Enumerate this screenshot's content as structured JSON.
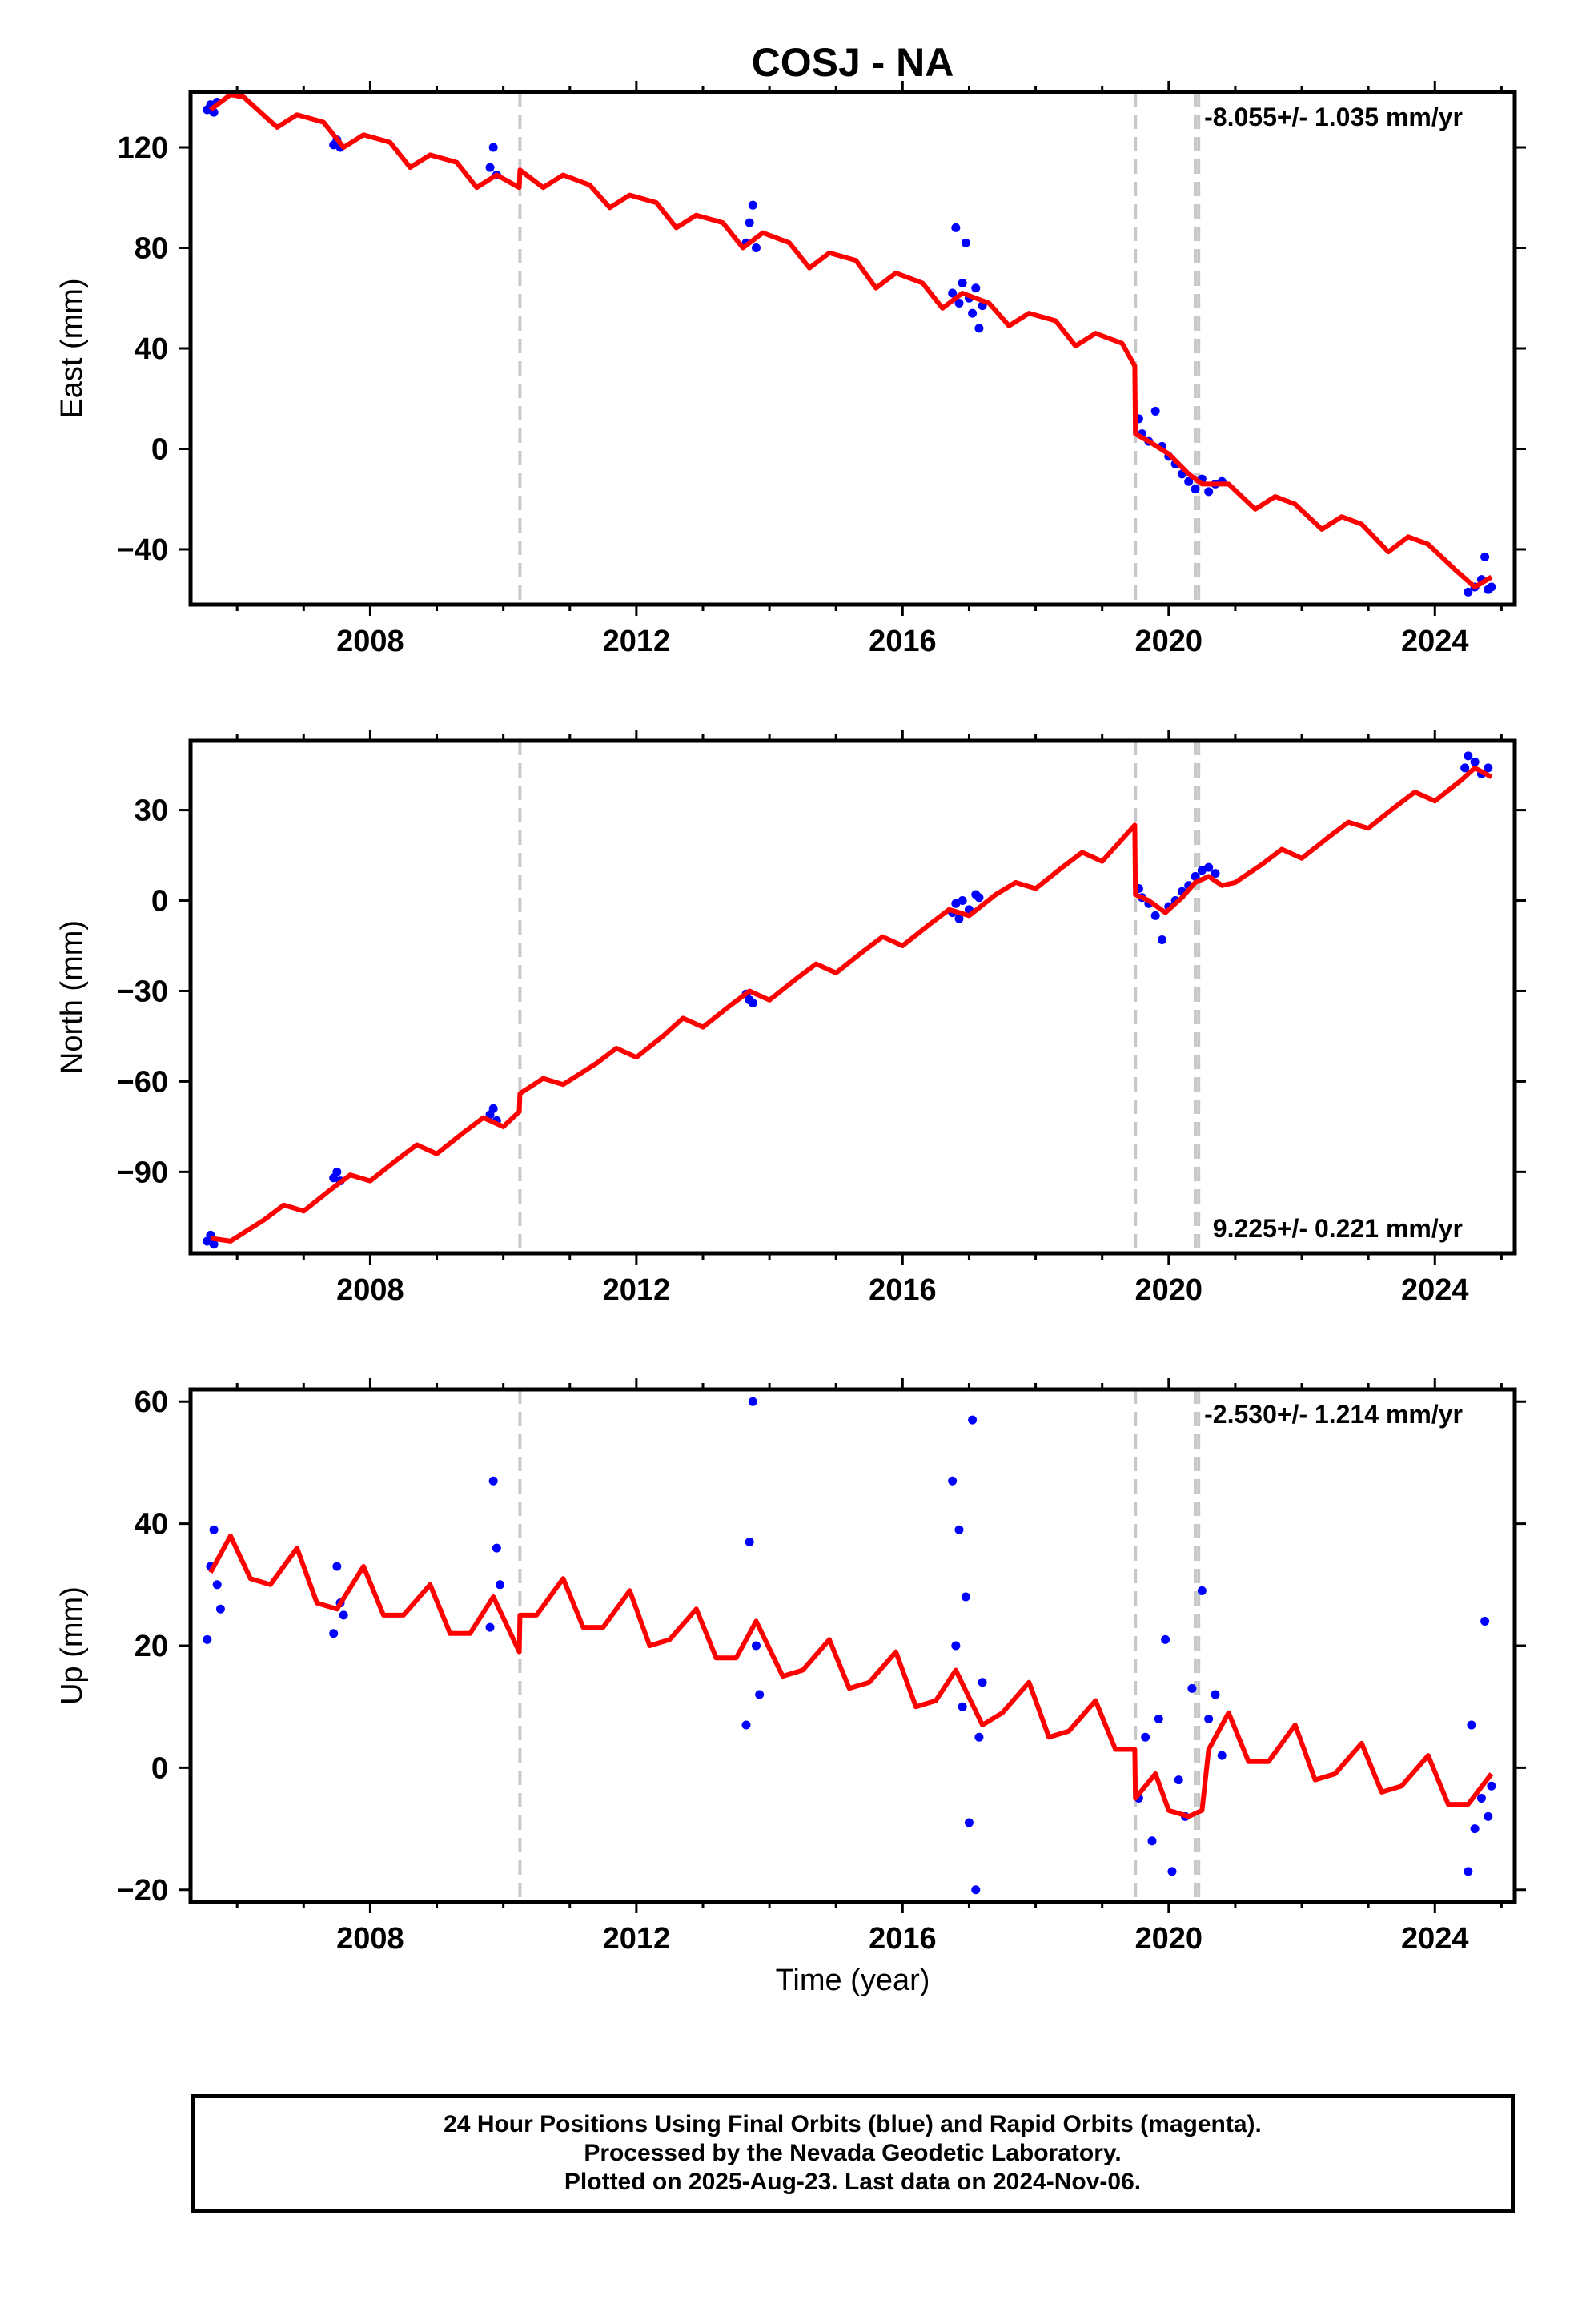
{
  "title": "COSJ - NA",
  "xlabel": "Time (year)",
  "footer": [
    "24 Hour Positions Using Final Orbits (blue) and Rapid Orbits (magenta).",
    "Processed by the Nevada Geodetic Laboratory.",
    "Plotted on 2025-Aug-23. Last data on 2024-Nov-06."
  ],
  "colors": {
    "data": "#0000ff",
    "model": "#ff0000",
    "steps": "#c8c8c8",
    "frame": "#000000"
  },
  "chart_data": [
    {
      "type": "scatter",
      "panel": "East",
      "ylabel": "East (mm)",
      "rate_label": "-8.055+/- 1.035 mm/yr",
      "rate_position": "top-right",
      "xlim": [
        2005.3,
        2025.2
      ],
      "ylim": [
        -62,
        142
      ],
      "xticks": [
        2008,
        2012,
        2016,
        2020,
        2024
      ],
      "yticks": [
        120,
        80,
        40,
        0,
        -40
      ],
      "ytick_labels": [
        "120",
        "80",
        "40",
        "0",
        "−40"
      ],
      "steps": [
        2010.25,
        2019.5,
        2020.4,
        2020.45
      ],
      "model": [
        [
          2005.6,
          135
        ],
        [
          2005.9,
          141
        ],
        [
          2006.1,
          140
        ],
        [
          2006.6,
          128
        ],
        [
          2006.9,
          133
        ],
        [
          2007.3,
          130
        ],
        [
          2007.6,
          120
        ],
        [
          2007.9,
          125
        ],
        [
          2008.3,
          122
        ],
        [
          2008.6,
          112
        ],
        [
          2008.9,
          117
        ],
        [
          2009.3,
          114
        ],
        [
          2009.6,
          104
        ],
        [
          2009.9,
          109
        ],
        [
          2010.24,
          104
        ],
        [
          2010.25,
          111
        ],
        [
          2010.6,
          104
        ],
        [
          2010.9,
          109
        ],
        [
          2011.3,
          105
        ],
        [
          2011.6,
          96
        ],
        [
          2011.9,
          101
        ],
        [
          2012.3,
          98
        ],
        [
          2012.6,
          88
        ],
        [
          2012.9,
          93
        ],
        [
          2013.3,
          90
        ],
        [
          2013.6,
          80
        ],
        [
          2013.9,
          86
        ],
        [
          2014.3,
          82
        ],
        [
          2014.6,
          72
        ],
        [
          2014.9,
          78
        ],
        [
          2015.3,
          75
        ],
        [
          2015.6,
          64
        ],
        [
          2015.9,
          70
        ],
        [
          2016.3,
          66
        ],
        [
          2016.6,
          56
        ],
        [
          2016.9,
          62
        ],
        [
          2017.3,
          58
        ],
        [
          2017.6,
          49
        ],
        [
          2017.9,
          54
        ],
        [
          2018.3,
          51
        ],
        [
          2018.6,
          41
        ],
        [
          2018.9,
          46
        ],
        [
          2019.3,
          42
        ],
        [
          2019.49,
          33
        ],
        [
          2019.5,
          6
        ],
        [
          2019.7,
          3
        ],
        [
          2020.0,
          -2
        ],
        [
          2020.3,
          -10
        ],
        [
          2020.5,
          -14
        ],
        [
          2020.9,
          -14
        ],
        [
          2021.3,
          -24
        ],
        [
          2021.6,
          -19
        ],
        [
          2021.9,
          -22
        ],
        [
          2022.3,
          -32
        ],
        [
          2022.6,
          -27
        ],
        [
          2022.9,
          -30
        ],
        [
          2023.3,
          -41
        ],
        [
          2023.6,
          -35
        ],
        [
          2023.9,
          -38
        ],
        [
          2024.3,
          -48
        ],
        [
          2024.6,
          -55
        ],
        [
          2024.85,
          -51
        ]
      ],
      "points": [
        [
          2005.55,
          135
        ],
        [
          2005.6,
          137
        ],
        [
          2005.65,
          134
        ],
        [
          2005.7,
          138
        ],
        [
          2007.45,
          121
        ],
        [
          2007.5,
          123
        ],
        [
          2007.55,
          120
        ],
        [
          2009.8,
          112
        ],
        [
          2009.85,
          120
        ],
        [
          2009.9,
          109
        ],
        [
          2013.65,
          82
        ],
        [
          2013.7,
          90
        ],
        [
          2013.75,
          97
        ],
        [
          2013.8,
          80
        ],
        [
          2016.75,
          62
        ],
        [
          2016.8,
          88
        ],
        [
          2016.85,
          58
        ],
        [
          2016.9,
          66
        ],
        [
          2016.95,
          82
        ],
        [
          2017.0,
          60
        ],
        [
          2017.05,
          54
        ],
        [
          2017.1,
          64
        ],
        [
          2017.15,
          48
        ],
        [
          2017.2,
          57
        ],
        [
          2019.55,
          12
        ],
        [
          2019.6,
          6
        ],
        [
          2019.7,
          3
        ],
        [
          2019.8,
          15
        ],
        [
          2019.9,
          1
        ],
        [
          2020.0,
          -3
        ],
        [
          2020.1,
          -6
        ],
        [
          2020.2,
          -10
        ],
        [
          2020.3,
          -13
        ],
        [
          2020.4,
          -16
        ],
        [
          2020.5,
          -12
        ],
        [
          2020.6,
          -17
        ],
        [
          2020.7,
          -14
        ],
        [
          2020.8,
          -13
        ],
        [
          2024.5,
          -57
        ],
        [
          2024.6,
          -55
        ],
        [
          2024.7,
          -52
        ],
        [
          2024.75,
          -43
        ],
        [
          2024.8,
          -56
        ],
        [
          2024.85,
          -55
        ]
      ]
    },
    {
      "type": "scatter",
      "panel": "North",
      "ylabel": "North (mm)",
      "rate_label": "9.225+/- 0.221 mm/yr",
      "rate_position": "bottom-right",
      "xlim": [
        2005.3,
        2025.2
      ],
      "ylim": [
        -117,
        53
      ],
      "xticks": [
        2008,
        2012,
        2016,
        2020,
        2024
      ],
      "yticks": [
        30,
        0,
        -30,
        -60,
        -90
      ],
      "ytick_labels": [
        "30",
        "0",
        "−30",
        "−60",
        "−90"
      ],
      "steps": [
        2010.25,
        2019.5,
        2020.4,
        2020.45
      ],
      "model": [
        [
          2005.6,
          -112
        ],
        [
          2005.9,
          -113
        ],
        [
          2006.4,
          -106
        ],
        [
          2006.7,
          -101
        ],
        [
          2007.0,
          -103
        ],
        [
          2007.4,
          -96
        ],
        [
          2007.7,
          -91
        ],
        [
          2008.0,
          -93
        ],
        [
          2008.4,
          -86
        ],
        [
          2008.7,
          -81
        ],
        [
          2009.0,
          -84
        ],
        [
          2009.4,
          -77
        ],
        [
          2009.7,
          -72
        ],
        [
          2010.0,
          -75
        ],
        [
          2010.24,
          -70
        ],
        [
          2010.25,
          -64
        ],
        [
          2010.6,
          -59
        ],
        [
          2010.9,
          -61
        ],
        [
          2011.4,
          -54
        ],
        [
          2011.7,
          -49
        ],
        [
          2012.0,
          -52
        ],
        [
          2012.4,
          -45
        ],
        [
          2012.7,
          -39
        ],
        [
          2013.0,
          -42
        ],
        [
          2013.4,
          -35
        ],
        [
          2013.7,
          -30
        ],
        [
          2014.0,
          -33
        ],
        [
          2014.4,
          -26
        ],
        [
          2014.7,
          -21
        ],
        [
          2015.0,
          -24
        ],
        [
          2015.4,
          -17
        ],
        [
          2015.7,
          -12
        ],
        [
          2016.0,
          -15
        ],
        [
          2016.4,
          -8
        ],
        [
          2016.7,
          -3
        ],
        [
          2017.0,
          -5
        ],
        [
          2017.4,
          2
        ],
        [
          2017.7,
          6
        ],
        [
          2018.0,
          4
        ],
        [
          2018.4,
          11
        ],
        [
          2018.7,
          16
        ],
        [
          2019.0,
          13
        ],
        [
          2019.49,
          25
        ],
        [
          2019.5,
          2
        ],
        [
          2019.7,
          0
        ],
        [
          2019.95,
          -4
        ],
        [
          2020.2,
          1
        ],
        [
          2020.4,
          6
        ],
        [
          2020.6,
          8
        ],
        [
          2020.8,
          5
        ],
        [
          2021.0,
          6
        ],
        [
          2021.4,
          12
        ],
        [
          2021.7,
          17
        ],
        [
          2022.0,
          14
        ],
        [
          2022.4,
          21
        ],
        [
          2022.7,
          26
        ],
        [
          2023.0,
          24
        ],
        [
          2023.4,
          31
        ],
        [
          2023.7,
          36
        ],
        [
          2024.0,
          33
        ],
        [
          2024.4,
          40
        ],
        [
          2024.6,
          44
        ],
        [
          2024.85,
          41
        ]
      ],
      "points": [
        [
          2005.55,
          -113
        ],
        [
          2005.6,
          -111
        ],
        [
          2005.65,
          -114
        ],
        [
          2007.45,
          -92
        ],
        [
          2007.5,
          -90
        ],
        [
          2007.55,
          -93
        ],
        [
          2009.8,
          -71
        ],
        [
          2009.85,
          -69
        ],
        [
          2009.9,
          -73
        ],
        [
          2013.65,
          -31
        ],
        [
          2013.7,
          -33
        ],
        [
          2013.75,
          -34
        ],
        [
          2016.75,
          -4
        ],
        [
          2016.8,
          -1
        ],
        [
          2016.85,
          -6
        ],
        [
          2016.9,
          0
        ],
        [
          2017.0,
          -3
        ],
        [
          2017.1,
          2
        ],
        [
          2017.15,
          1
        ],
        [
          2019.55,
          4
        ],
        [
          2019.6,
          1
        ],
        [
          2019.7,
          -1
        ],
        [
          2019.8,
          -5
        ],
        [
          2019.9,
          -13
        ],
        [
          2020.0,
          -2
        ],
        [
          2020.1,
          0
        ],
        [
          2020.2,
          3
        ],
        [
          2020.3,
          5
        ],
        [
          2020.4,
          8
        ],
        [
          2020.5,
          10
        ],
        [
          2020.6,
          11
        ],
        [
          2020.7,
          9
        ],
        [
          2024.45,
          44
        ],
        [
          2024.5,
          48
        ],
        [
          2024.6,
          46
        ],
        [
          2024.7,
          42
        ],
        [
          2024.8,
          44
        ]
      ]
    },
    {
      "type": "scatter",
      "panel": "Up",
      "ylabel": "Up (mm)",
      "rate_label": "-2.530+/- 1.214 mm/yr",
      "rate_position": "top-right",
      "xlim": [
        2005.3,
        2025.2
      ],
      "ylim": [
        -22,
        62
      ],
      "xticks": [
        2008,
        2012,
        2016,
        2020,
        2024
      ],
      "yticks": [
        60,
        40,
        20,
        0,
        -20
      ],
      "ytick_labels": [
        "60",
        "40",
        "20",
        "0",
        "−20"
      ],
      "steps": [
        2010.25,
        2019.5,
        2020.4,
        2020.45
      ],
      "model": [
        [
          2005.6,
          32
        ],
        [
          2005.9,
          38
        ],
        [
          2006.2,
          31
        ],
        [
          2006.5,
          30
        ],
        [
          2006.9,
          36
        ],
        [
          2007.2,
          27
        ],
        [
          2007.5,
          26
        ],
        [
          2007.9,
          33
        ],
        [
          2008.2,
          25
        ],
        [
          2008.5,
          25
        ],
        [
          2008.9,
          30
        ],
        [
          2009.2,
          22
        ],
        [
          2009.5,
          22
        ],
        [
          2009.85,
          28
        ],
        [
          2010.24,
          19
        ],
        [
          2010.25,
          25
        ],
        [
          2010.5,
          25
        ],
        [
          2010.9,
          31
        ],
        [
          2011.2,
          23
        ],
        [
          2011.5,
          23
        ],
        [
          2011.9,
          29
        ],
        [
          2012.2,
          20
        ],
        [
          2012.5,
          21
        ],
        [
          2012.9,
          26
        ],
        [
          2013.2,
          18
        ],
        [
          2013.5,
          18
        ],
        [
          2013.8,
          24
        ],
        [
          2014.2,
          15
        ],
        [
          2014.5,
          16
        ],
        [
          2014.9,
          21
        ],
        [
          2015.2,
          13
        ],
        [
          2015.5,
          14
        ],
        [
          2015.9,
          19
        ],
        [
          2016.2,
          10
        ],
        [
          2016.5,
          11
        ],
        [
          2016.8,
          16
        ],
        [
          2017.2,
          7
        ],
        [
          2017.5,
          9
        ],
        [
          2017.9,
          14
        ],
        [
          2018.2,
          5
        ],
        [
          2018.5,
          6
        ],
        [
          2018.9,
          11
        ],
        [
          2019.2,
          3
        ],
        [
          2019.49,
          3
        ],
        [
          2019.5,
          -5
        ],
        [
          2019.8,
          -1
        ],
        [
          2020.0,
          -7
        ],
        [
          2020.3,
          -8
        ],
        [
          2020.5,
          -7
        ],
        [
          2020.6,
          3
        ],
        [
          2020.9,
          9
        ],
        [
          2021.2,
          1
        ],
        [
          2021.5,
          1
        ],
        [
          2021.9,
          7
        ],
        [
          2022.2,
          -2
        ],
        [
          2022.5,
          -1
        ],
        [
          2022.9,
          4
        ],
        [
          2023.2,
          -4
        ],
        [
          2023.5,
          -3
        ],
        [
          2023.9,
          2
        ],
        [
          2024.2,
          -6
        ],
        [
          2024.5,
          -6
        ],
        [
          2024.85,
          -1
        ]
      ],
      "points": [
        [
          2005.55,
          21
        ],
        [
          2005.6,
          33
        ],
        [
          2005.65,
          39
        ],
        [
          2005.7,
          30
        ],
        [
          2005.75,
          26
        ],
        [
          2007.45,
          22
        ],
        [
          2007.5,
          33
        ],
        [
          2007.55,
          27
        ],
        [
          2007.6,
          25
        ],
        [
          2009.8,
          23
        ],
        [
          2009.85,
          47
        ],
        [
          2009.9,
          36
        ],
        [
          2009.95,
          30
        ],
        [
          2013.65,
          7
        ],
        [
          2013.7,
          37
        ],
        [
          2013.75,
          60
        ],
        [
          2013.8,
          20
        ],
        [
          2013.85,
          12
        ],
        [
          2016.75,
          47
        ],
        [
          2016.8,
          20
        ],
        [
          2016.85,
          39
        ],
        [
          2016.9,
          10
        ],
        [
          2016.95,
          28
        ],
        [
          2017.0,
          -9
        ],
        [
          2017.05,
          57
        ],
        [
          2017.1,
          -20
        ],
        [
          2017.15,
          5
        ],
        [
          2017.2,
          14
        ],
        [
          2019.55,
          -5
        ],
        [
          2019.65,
          5
        ],
        [
          2019.75,
          -12
        ],
        [
          2019.85,
          8
        ],
        [
          2019.95,
          21
        ],
        [
          2020.05,
          -17
        ],
        [
          2020.15,
          -2
        ],
        [
          2020.25,
          -8
        ],
        [
          2020.35,
          13
        ],
        [
          2020.5,
          29
        ],
        [
          2020.6,
          8
        ],
        [
          2020.7,
          12
        ],
        [
          2020.8,
          2
        ],
        [
          2024.5,
          -17
        ],
        [
          2024.55,
          7
        ],
        [
          2024.6,
          -10
        ],
        [
          2024.7,
          -5
        ],
        [
          2024.75,
          24
        ],
        [
          2024.8,
          -8
        ],
        [
          2024.85,
          -3
        ]
      ]
    }
  ]
}
